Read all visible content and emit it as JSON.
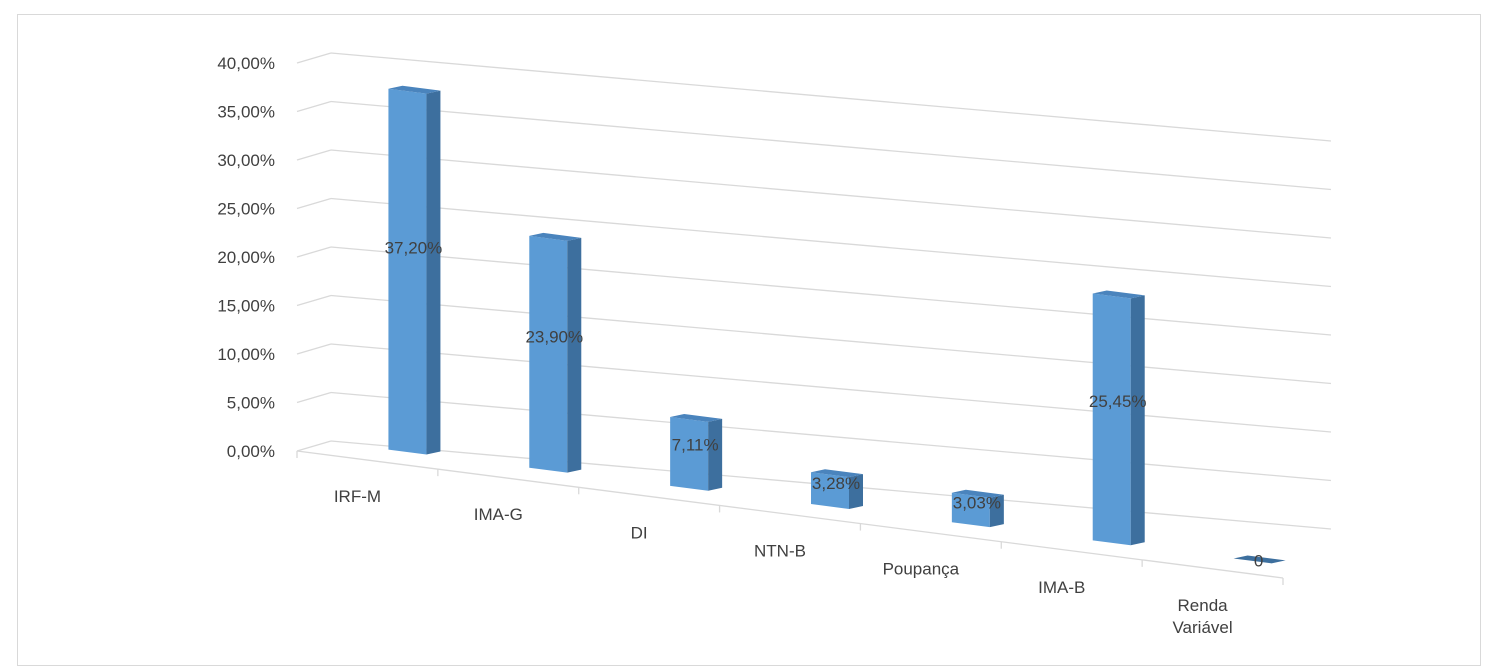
{
  "chart_data": {
    "type": "bar",
    "style": "3d-column",
    "categories": [
      [
        "IRF-M"
      ],
      [
        "IMA-G"
      ],
      [
        "DI"
      ],
      [
        "NTN-B"
      ],
      [
        "Poupança"
      ],
      [
        "IMA-B"
      ],
      [
        "Renda",
        "Variável"
      ]
    ],
    "values": [
      37.2,
      23.9,
      7.11,
      3.28,
      3.03,
      25.45,
      0
    ],
    "data_labels": [
      "37,20%",
      "23,90%",
      "7,11%",
      "3,28%",
      "3,03%",
      "25,45%",
      "0"
    ],
    "y_ticks": [
      "0,00%",
      "5,00%",
      "10,00%",
      "15,00%",
      "20,00%",
      "25,00%",
      "30,00%",
      "35,00%",
      "40,00%"
    ],
    "ylim": [
      0,
      40
    ],
    "title": "",
    "xlabel": "",
    "ylabel": "",
    "grid": true,
    "legend": "none",
    "colors": {
      "bar_front": "#5b9bd5",
      "bar_side": "#3d6f9e",
      "bar_top": "#4a84bd",
      "gridline": "#d9d9d9",
      "axis_text": "#404040"
    }
  }
}
